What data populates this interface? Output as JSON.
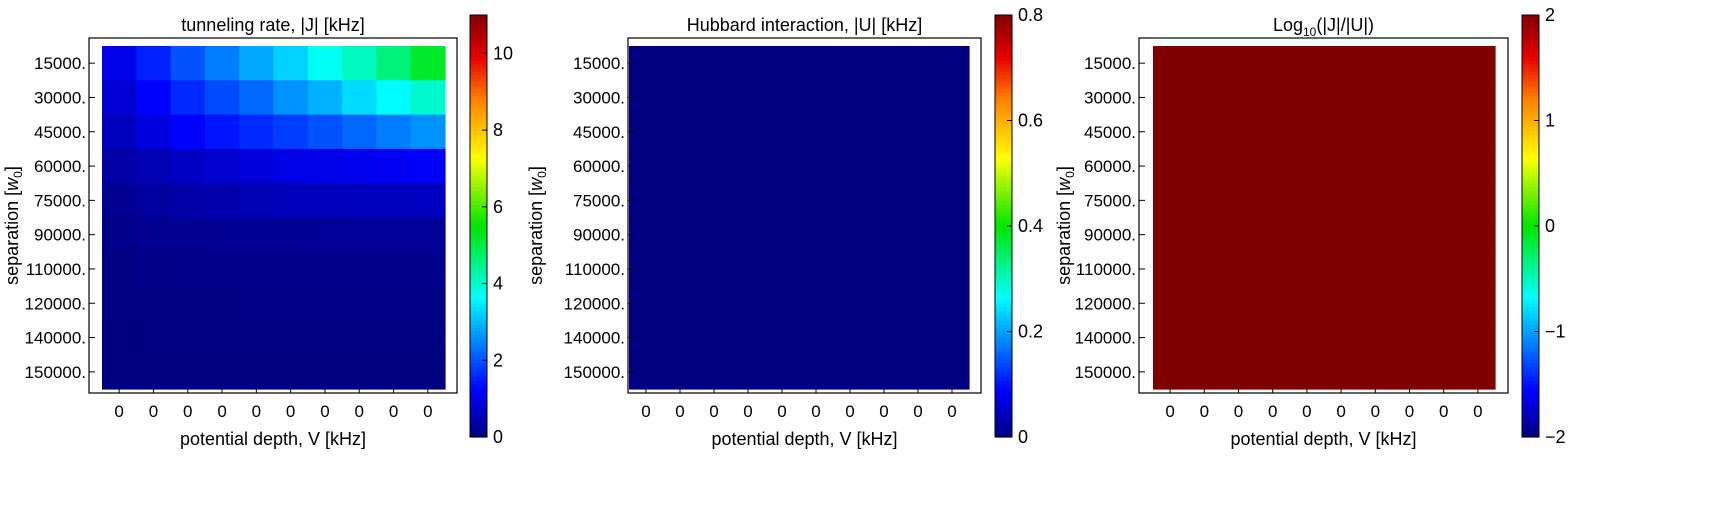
{
  "chart_data": [
    {
      "type": "heatmap",
      "title": "tunneling rate, |J| [kHz]",
      "xlabel": "potential depth, V [kHz]",
      "ylabel": "separation [w₀]",
      "x_ticks": [
        "0",
        "0",
        "0",
        "0",
        "0",
        "0",
        "0",
        "0",
        "0",
        "0"
      ],
      "y_ticks": [
        "15000.",
        "30000.",
        "45000.",
        "60000.",
        "75000.",
        "90000.",
        "110000.",
        "120000.",
        "140000.",
        "150000."
      ],
      "colorbar": {
        "min": 0,
        "max": 11,
        "ticks": [
          0,
          2,
          4,
          6,
          8,
          10
        ],
        "tick_labels": [
          "0",
          "2",
          "4",
          "6",
          "8",
          "10"
        ]
      },
      "values": [
        [
          1.0,
          1.5,
          2.0,
          2.4,
          2.8,
          3.2,
          3.7,
          4.1,
          4.6,
          5.2
        ],
        [
          0.8,
          1.2,
          1.6,
          1.9,
          2.2,
          2.6,
          2.9,
          3.3,
          3.6,
          4.0
        ],
        [
          0.6,
          0.9,
          1.2,
          1.4,
          1.6,
          1.8,
          2.0,
          2.2,
          2.4,
          2.6
        ],
        [
          0.35,
          0.5,
          0.65,
          0.75,
          0.85,
          0.95,
          1.0,
          1.05,
          1.1,
          1.15
        ],
        [
          0.2,
          0.3,
          0.38,
          0.45,
          0.5,
          0.55,
          0.58,
          0.6,
          0.62,
          0.64
        ],
        [
          0.1,
          0.15,
          0.18,
          0.2,
          0.22,
          0.22,
          0.23,
          0.23,
          0.23,
          0.24
        ],
        [
          0.05,
          0.08,
          0.1,
          0.11,
          0.12,
          0.12,
          0.12,
          0.12,
          0.12,
          0.12
        ],
        [
          0.03,
          0.04,
          0.05,
          0.05,
          0.06,
          0.06,
          0.06,
          0.06,
          0.06,
          0.06
        ],
        [
          0.01,
          0.02,
          0.02,
          0.02,
          0.03,
          0.03,
          0.03,
          0.03,
          0.03,
          0.03
        ],
        [
          0.005,
          0.01,
          0.01,
          0.01,
          0.01,
          0.01,
          0.01,
          0.01,
          0.01,
          0.01
        ]
      ]
    },
    {
      "type": "heatmap",
      "title": "Hubbard interaction, |U| [kHz]",
      "xlabel": "potential depth, V [kHz]",
      "ylabel": "separation [w₀]",
      "x_ticks": [
        "0",
        "0",
        "0",
        "0",
        "0",
        "0",
        "0",
        "0",
        "0",
        "0"
      ],
      "y_ticks": [
        "15000.",
        "30000.",
        "45000.",
        "60000.",
        "75000.",
        "90000.",
        "110000.",
        "120000.",
        "140000.",
        "150000."
      ],
      "colorbar": {
        "min": 0,
        "max": 0.8,
        "ticks": [
          0,
          0.2,
          0.4,
          0.6,
          0.8
        ],
        "tick_labels": [
          "0",
          "0.2",
          "0.4",
          "0.6",
          "0.8"
        ]
      },
      "uniform_value": 0
    },
    {
      "type": "heatmap",
      "title": "Log₁₀(|J|/|U|)",
      "xlabel": "potential depth, V [kHz]",
      "ylabel": "separation [w₀]",
      "x_ticks": [
        "0",
        "0",
        "0",
        "0",
        "0",
        "0",
        "0",
        "0",
        "0",
        "0"
      ],
      "y_ticks": [
        "15000.",
        "30000.",
        "45000.",
        "60000.",
        "75000.",
        "90000.",
        "110000.",
        "120000.",
        "140000.",
        "150000."
      ],
      "colorbar": {
        "min": -2,
        "max": 2,
        "ticks": [
          -2,
          -1,
          0,
          1,
          2
        ],
        "tick_labels": [
          "−2",
          "−1",
          "0",
          "1",
          "2"
        ]
      },
      "uniform_value": 2
    }
  ]
}
